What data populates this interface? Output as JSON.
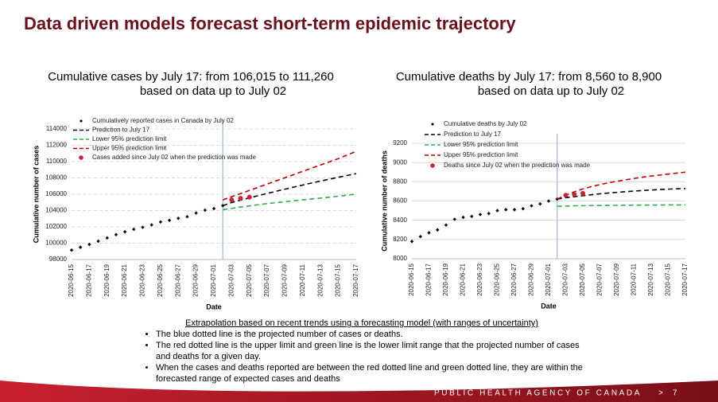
{
  "slide": {
    "title": "Data driven models forecast short-term epidemic trajectory",
    "notes": {
      "heading": "Extrapolation based on recent trends using a forecasting model (with ranges of uncertainty)",
      "bullets": [
        "The blue dotted line is the projected number of cases or deaths.",
        "The red dotted line is the upper limit and green line is the lower limit range that the projected number of cases and deaths for a given day.",
        "When the cases and deaths reported are between the red dotted line and green dotted line, they are within the forecasted range of expected cases and deaths"
      ]
    },
    "footer": {
      "text": "PUBLIC HEALTH AGENCY OF CANADA",
      "separator": ">",
      "page": "7"
    }
  },
  "chart_data": [
    {
      "type": "line",
      "title": "Cumulative cases by July 17:  from 106,015 to 111,260",
      "subtitle": "based on data up to July 02",
      "x_label": "Date",
      "y_label": "Cumulative number of cases",
      "grid": true,
      "categories": [
        "2020-06-15",
        null,
        "2020-06-17",
        null,
        "2020-06-19",
        null,
        "2020-06-21",
        null,
        "2020-06-23",
        null,
        "2020-06-25",
        null,
        "2020-06-27",
        null,
        "2020-06-29",
        null,
        "2020-07-01",
        null,
        "2020-07-03",
        null,
        "2020-07-05",
        null,
        "2020-07-07",
        null,
        "2020-07-09",
        null,
        "2020-07-11",
        null,
        "2020-07-13",
        null,
        "2020-07-15",
        null,
        "2020-07-17"
      ],
      "ylim": [
        98000,
        114000
      ],
      "yticks": [
        98000,
        100000,
        102000,
        104000,
        106000,
        108000,
        110000,
        112000,
        114000
      ],
      "series": [
        {
          "name": "Cumulatively reported cases in Canada by July 02",
          "color": "#000000",
          "marker": "diamond",
          "values": [
            99150,
            99500,
            99850,
            100250,
            100650,
            101050,
            101400,
            101700,
            101950,
            102250,
            102600,
            102800,
            103050,
            103250,
            103700,
            104050,
            104250,
            104600,
            null,
            null,
            null,
            null,
            null,
            null,
            null,
            null,
            null,
            null,
            null,
            null,
            null,
            null,
            null
          ]
        },
        {
          "name": "Prediction to July 17",
          "color": "#000000",
          "marker": "dash",
          "values": [
            null,
            null,
            null,
            null,
            null,
            null,
            null,
            null,
            null,
            null,
            null,
            null,
            null,
            null,
            null,
            null,
            null,
            104600,
            104990,
            105275,
            105555,
            105830,
            106100,
            106365,
            106625,
            106880,
            107130,
            107375,
            107615,
            107850,
            108080,
            108305,
            108525
          ]
        },
        {
          "name": "Lower 95% prediction limit",
          "color": "#2eb050",
          "marker": "dash",
          "values": [
            null,
            null,
            null,
            null,
            null,
            null,
            null,
            null,
            null,
            null,
            null,
            null,
            null,
            null,
            null,
            null,
            null,
            104100,
            104270,
            104430,
            104580,
            104720,
            104850,
            104970,
            105090,
            105200,
            105310,
            105420,
            105530,
            105640,
            105760,
            105890,
            106015
          ]
        },
        {
          "name": "Upper 95% prediction limit",
          "color": "#c00000",
          "marker": "dash",
          "values": [
            null,
            null,
            null,
            null,
            null,
            null,
            null,
            null,
            null,
            null,
            null,
            null,
            null,
            null,
            null,
            null,
            null,
            105300,
            105690,
            106080,
            106470,
            106860,
            107250,
            107640,
            108030,
            108420,
            108810,
            109200,
            109590,
            109980,
            110370,
            110810,
            111260
          ]
        },
        {
          "name": "Cases added since July 02 when the prediction was made",
          "color": "#c0263a",
          "marker": "circle",
          "values": [
            null,
            null,
            null,
            null,
            null,
            null,
            null,
            null,
            null,
            null,
            null,
            null,
            null,
            null,
            null,
            null,
            null,
            null,
            105300,
            105500,
            105650,
            null,
            null,
            null,
            null,
            null,
            null,
            null,
            null,
            null,
            null,
            null,
            null
          ]
        }
      ]
    },
    {
      "type": "line",
      "title": "Cumulative deaths by July 17:  from 8,560 to 8,900",
      "subtitle": "based on data up to July 02",
      "x_label": "Date",
      "y_label": "Cumulative number of deaths",
      "grid": true,
      "categories": [
        "2020-06-15",
        null,
        "2020-06-17",
        null,
        "2020-06-19",
        null,
        "2020-06-21",
        null,
        "2020-06-23",
        null,
        "2020-06-25",
        null,
        "2020-06-27",
        null,
        "2020-06-29",
        null,
        "2020-07-01",
        null,
        "2020-07-03",
        null,
        "2020-07-05",
        null,
        "2020-07-07",
        null,
        "2020-07-09",
        null,
        "2020-07-11",
        null,
        "2020-07-13",
        null,
        "2020-07-15",
        null,
        "2020-07-17"
      ],
      "ylim": [
        8000,
        9200
      ],
      "yticks": [
        8000,
        8200,
        8400,
        8600,
        8800,
        9000,
        9200
      ],
      "series": [
        {
          "name": "Cumulative deaths by July 02",
          "color": "#000000",
          "marker": "diamond",
          "values": [
            8180,
            8230,
            8270,
            8300,
            8350,
            8410,
            8430,
            8440,
            8460,
            8470,
            8500,
            8510,
            8510,
            8520,
            8550,
            8570,
            8600,
            8620,
            null,
            null,
            null,
            null,
            null,
            null,
            null,
            null,
            null,
            null,
            null,
            null,
            null,
            null,
            null
          ]
        },
        {
          "name": "Prediction to July 17",
          "color": "#000000",
          "marker": "dash",
          "values": [
            null,
            null,
            null,
            null,
            null,
            null,
            null,
            null,
            null,
            null,
            null,
            null,
            null,
            null,
            null,
            null,
            null,
            8620,
            8635,
            8645,
            8655,
            8665,
            8675,
            8683,
            8690,
            8697,
            8703,
            8709,
            8714,
            8719,
            8723,
            8727,
            8730
          ]
        },
        {
          "name": "Lower 95% prediction limit",
          "color": "#2eb050",
          "marker": "dash",
          "values": [
            null,
            null,
            null,
            null,
            null,
            null,
            null,
            null,
            null,
            null,
            null,
            null,
            null,
            null,
            null,
            null,
            null,
            8545,
            8548,
            8550,
            8551,
            8552,
            8553,
            8554,
            8555,
            8556,
            8557,
            8557,
            8558,
            8558,
            8559,
            8559,
            8560
          ]
        },
        {
          "name": "Upper 95% prediction limit",
          "color": "#c00000",
          "marker": "dash",
          "values": [
            null,
            null,
            null,
            null,
            null,
            null,
            null,
            null,
            null,
            null,
            null,
            null,
            null,
            null,
            null,
            null,
            null,
            8620,
            8660,
            8695,
            8725,
            8750,
            8770,
            8790,
            8805,
            8820,
            8835,
            8848,
            8860,
            8870,
            8880,
            8890,
            8900
          ]
        },
        {
          "name": "Deaths since July 02 when the prediction was made",
          "color": "#c0263a",
          "marker": "circle",
          "values": [
            null,
            null,
            null,
            null,
            null,
            null,
            null,
            null,
            null,
            null,
            null,
            null,
            null,
            null,
            null,
            null,
            null,
            null,
            8660,
            8670,
            8680,
            null,
            null,
            null,
            null,
            null,
            null,
            null,
            null,
            null,
            null,
            null,
            null
          ]
        }
      ]
    }
  ]
}
